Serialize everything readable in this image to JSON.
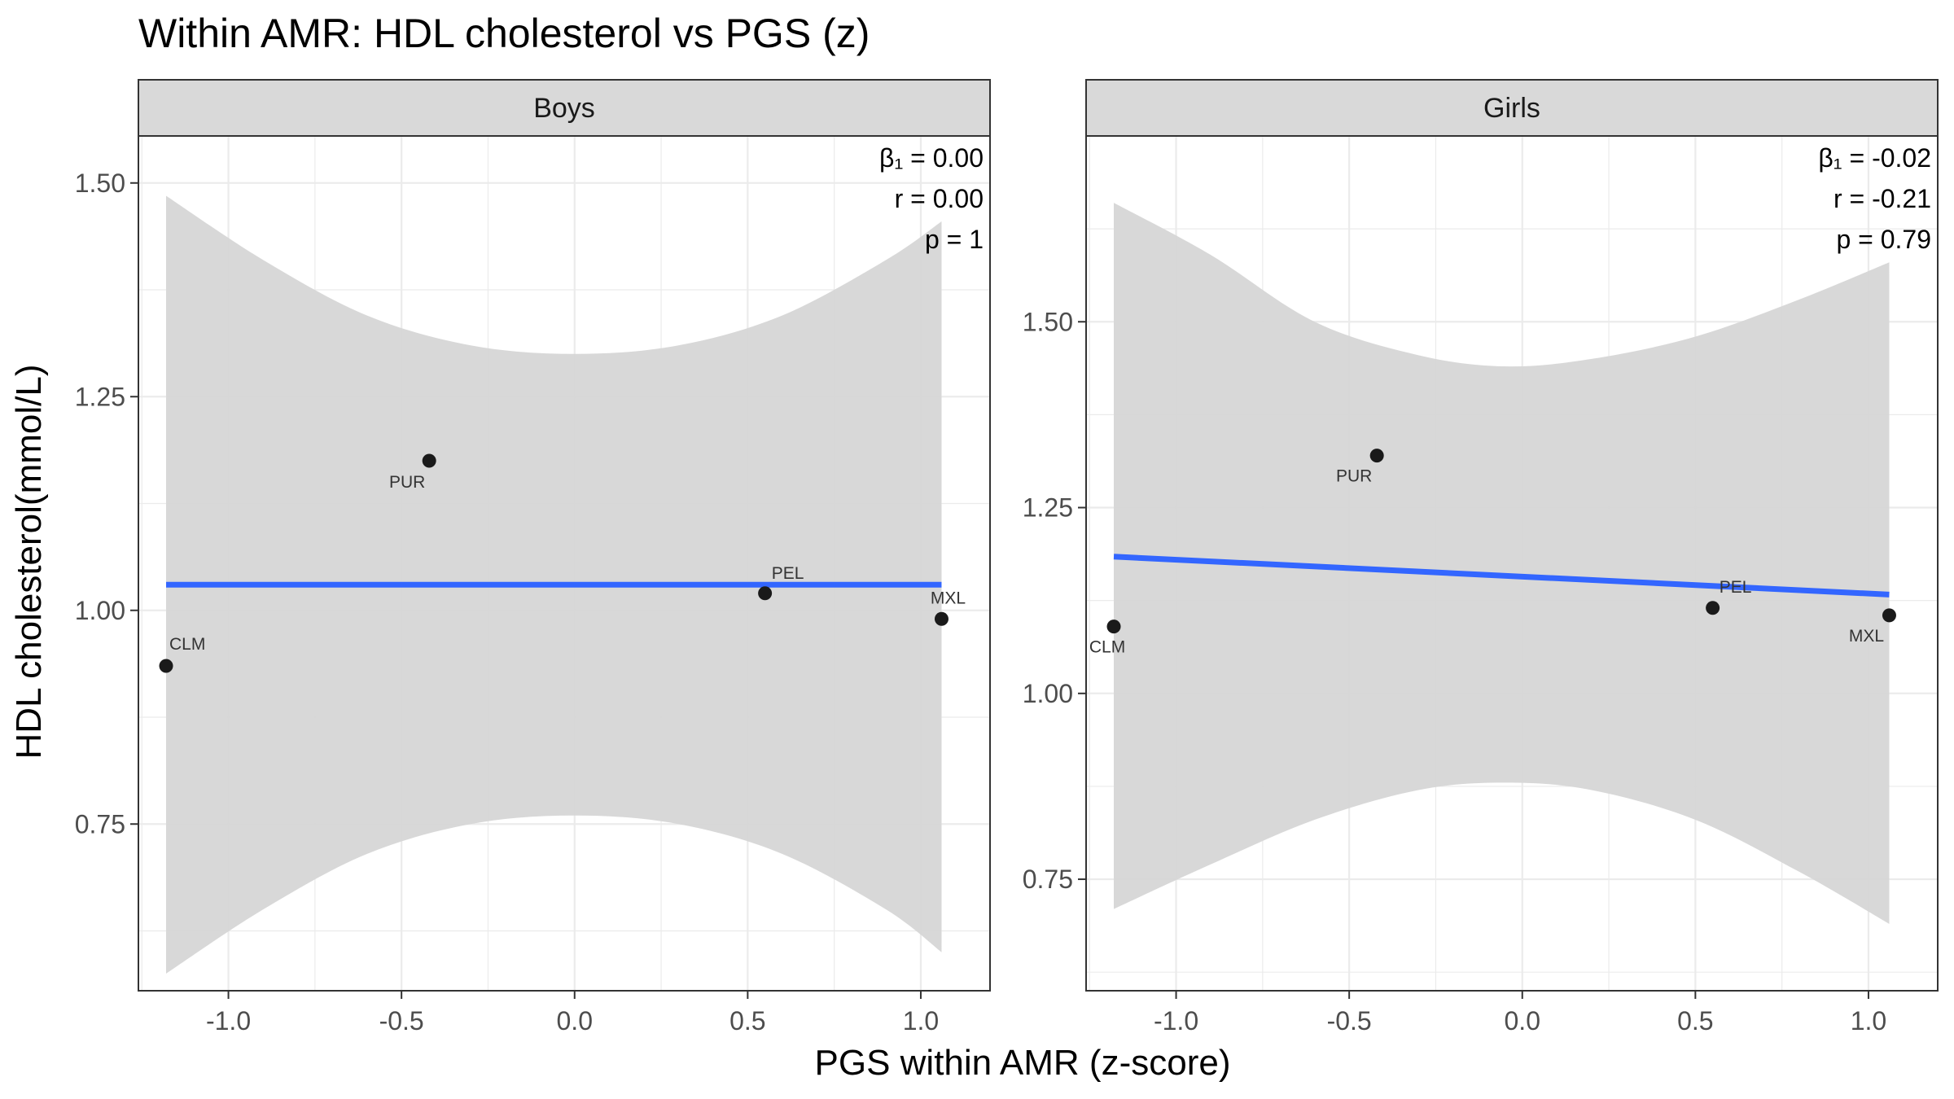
{
  "title": "Within AMR: HDL cholesterol vs PGS (z)",
  "xlabel": "PGS within AMR (z-score)",
  "ylabel": "HDL cholesterol(mmol/L)",
  "colors": {
    "line": "#3366FF",
    "ribbon": "#d6d6d6",
    "point": "#1a1a1a",
    "strip": "#d9d9d9",
    "grid": "#ebebeb",
    "panel_border": "#333333"
  },
  "chart_data": [
    {
      "type": "scatter",
      "panel": "Boys",
      "xlim": [
        -1.26,
        1.2
      ],
      "ylim": [
        0.555,
        1.555
      ],
      "xticks": [
        -1.0,
        -0.5,
        0.0,
        0.5,
        1.0
      ],
      "xtick_labels": [
        "-1.0",
        "-0.5",
        "0.0",
        "0.5",
        "1.0"
      ],
      "yticks": [
        0.75,
        1.0,
        1.25,
        1.5
      ],
      "ytick_labels": [
        "0.75",
        "1.00",
        "1.25",
        "1.50"
      ],
      "grid": true,
      "points": [
        {
          "label": "CLM",
          "x": -1.18,
          "y": 0.935
        },
        {
          "label": "PUR",
          "x": -0.42,
          "y": 1.175
        },
        {
          "label": "PEL",
          "x": 0.55,
          "y": 1.02
        },
        {
          "label": "MXL",
          "x": 1.06,
          "y": 0.99
        }
      ],
      "fit": {
        "x": [
          -1.18,
          1.06
        ],
        "y": [
          1.03,
          1.03
        ]
      },
      "ci_band": {
        "x": [
          -1.18,
          -0.9,
          -0.6,
          -0.3,
          0.0,
          0.3,
          0.6,
          0.9,
          1.06
        ],
        "upper": [
          1.485,
          1.41,
          1.345,
          1.31,
          1.3,
          1.31,
          1.345,
          1.41,
          1.455
        ],
        "lower": [
          0.575,
          0.65,
          0.715,
          0.75,
          0.76,
          0.75,
          0.715,
          0.65,
          0.6
        ]
      },
      "stats": [
        "β₁ = 0.00",
        "r = 0.00",
        "p = 1"
      ]
    },
    {
      "type": "scatter",
      "panel": "Girls",
      "xlim": [
        -1.26,
        1.2
      ],
      "ylim": [
        0.6,
        1.75
      ],
      "xticks": [
        -1.0,
        -0.5,
        0.0,
        0.5,
        1.0
      ],
      "xtick_labels": [
        "-1.0",
        "-0.5",
        "0.0",
        "0.5",
        "1.0"
      ],
      "yticks": [
        0.75,
        1.0,
        1.25,
        1.5
      ],
      "ytick_labels": [
        "0.75",
        "1.00",
        "1.25",
        "1.50"
      ],
      "grid": true,
      "points": [
        {
          "label": "CLM",
          "x": -1.18,
          "y": 1.09
        },
        {
          "label": "PUR",
          "x": -0.42,
          "y": 1.32
        },
        {
          "label": "PEL",
          "x": 0.55,
          "y": 1.115
        },
        {
          "label": "MXL",
          "x": 1.06,
          "y": 1.105
        }
      ],
      "fit": {
        "x": [
          -1.18,
          1.06
        ],
        "y": [
          1.184,
          1.133
        ]
      },
      "ci_band": {
        "x": [
          -1.18,
          -0.9,
          -0.6,
          -0.3,
          -0.05,
          0.2,
          0.5,
          0.8,
          1.06
        ],
        "upper": [
          1.66,
          1.59,
          1.5,
          1.455,
          1.44,
          1.45,
          1.48,
          1.53,
          1.58
        ],
        "lower": [
          0.71,
          0.77,
          0.83,
          0.87,
          0.88,
          0.87,
          0.83,
          0.76,
          0.69
        ]
      },
      "stats": [
        "β₁ = -0.02",
        "r = -0.21",
        "p = 0.79"
      ]
    }
  ]
}
